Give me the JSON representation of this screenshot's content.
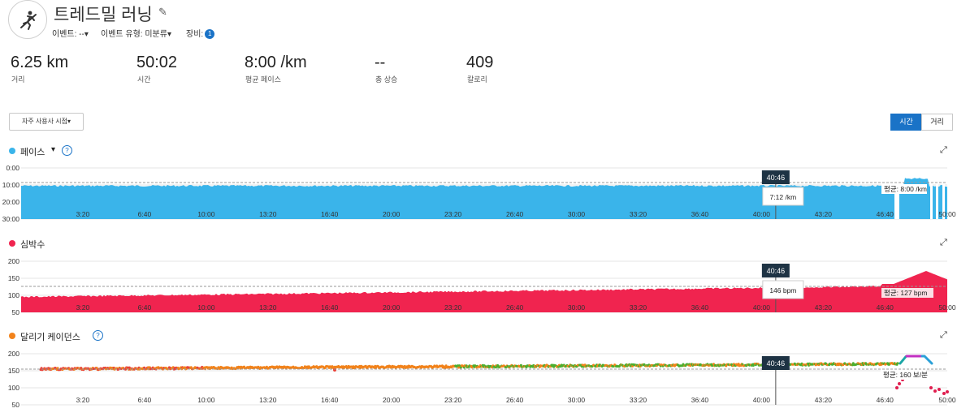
{
  "header": {
    "title": "트레드밀 러닝",
    "event_label": "이벤트: --",
    "event_type_label": "이벤트 유형: 미분류",
    "gear_label": "장비:",
    "gear_count": "1"
  },
  "stats": [
    {
      "value": "6.25 km",
      "label": "거리"
    },
    {
      "value": "50:02",
      "label": "시간"
    },
    {
      "value": "8:00 /km",
      "label": "평균 페이스"
    },
    {
      "value": "--",
      "label": "총 상승"
    },
    {
      "value": "409",
      "label": "칼로리"
    }
  ],
  "controls": {
    "preset_label": "자주 사용사 시점",
    "segment": {
      "time": "시간",
      "distance": "거리",
      "selected": "time"
    }
  },
  "x_ticks": [
    "3:20",
    "6:40",
    "10:00",
    "13:20",
    "16:40",
    "20:00",
    "23:20",
    "26:40",
    "30:00",
    "33:20",
    "36:40",
    "40:00",
    "43:20",
    "46:40",
    "50:00"
  ],
  "cursor": {
    "time": "40:46"
  },
  "charts": [
    {
      "key": "pace",
      "title": "페이스",
      "color": "#3ab4ea",
      "has_dropdown": true,
      "has_help": true,
      "y_ticks": [
        "0:00",
        "10:00",
        "20:00",
        "30:00"
      ],
      "avg_label": "평균: 8:00 /km",
      "tooltip": "7:12 /km"
    },
    {
      "key": "heart",
      "title": "심박수",
      "color": "#f0244f",
      "has_dropdown": false,
      "has_help": false,
      "y_ticks": [
        "200",
        "150",
        "100",
        "50"
      ],
      "avg_label": "평균: 127 bpm",
      "tooltip": "146 bpm"
    },
    {
      "key": "cadence",
      "title": "달리기 케이던스",
      "color": "#f2831b",
      "has_dropdown": false,
      "has_help": true,
      "y_ticks": [
        "200",
        "150",
        "100",
        "50"
      ],
      "avg_label": "평균: 160 보/분",
      "tooltip": ""
    }
  ]
}
